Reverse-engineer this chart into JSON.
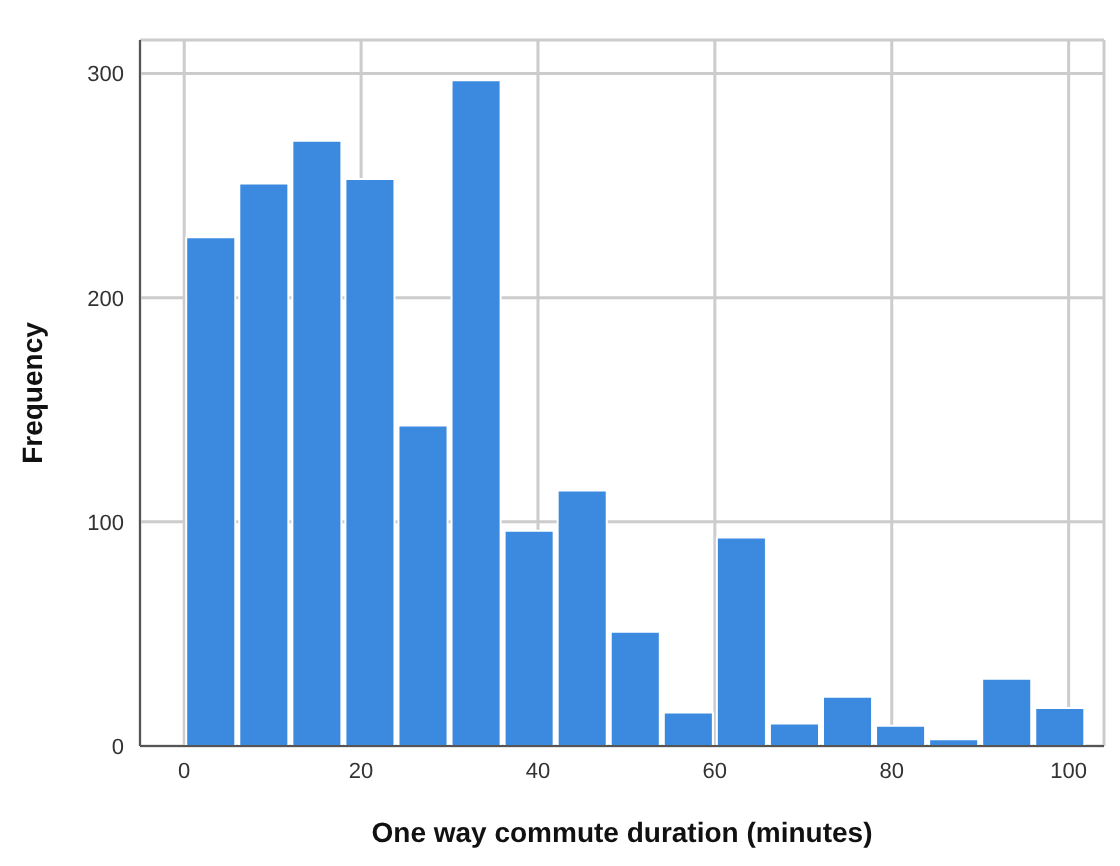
{
  "chart_data": {
    "type": "histogram",
    "xlabel": "One way commute duration (minutes)",
    "ylabel": "Frequency",
    "bins": [
      0,
      6,
      12,
      18,
      24,
      30,
      36,
      42,
      48,
      54,
      60,
      66,
      72,
      78,
      84,
      90,
      96,
      102
    ],
    "values": [
      227,
      251,
      270,
      253,
      143,
      297,
      96,
      114,
      51,
      15,
      93,
      10,
      22,
      9,
      3,
      30,
      17
    ],
    "color": "#3b8ae0",
    "xlim": [
      -5,
      104
    ],
    "xticks": [
      0,
      20,
      40,
      60,
      80,
      100
    ],
    "ylim": [
      0,
      315
    ],
    "yticks": [
      0,
      100,
      200,
      300
    ],
    "grid": true,
    "legend": false
  }
}
